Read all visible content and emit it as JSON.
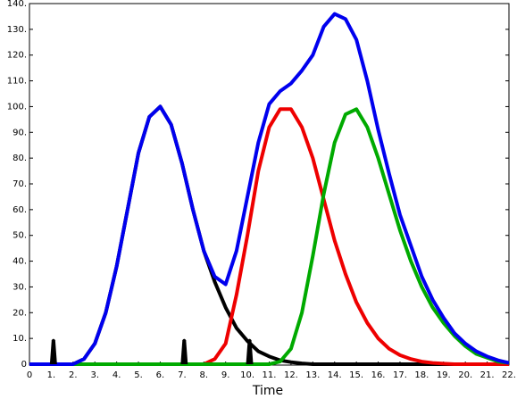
{
  "chart_data": {
    "type": "line",
    "x_label": "Time",
    "x": [
      0,
      0.5,
      1,
      1.5,
      2,
      2.5,
      3,
      3.5,
      4,
      4.5,
      5,
      5.5,
      6,
      6.5,
      7,
      7.5,
      8,
      8.5,
      9,
      9.5,
      10,
      10.5,
      11,
      11.5,
      12,
      12.5,
      13,
      13.5,
      14,
      14.5,
      15,
      15.5,
      16,
      16.5,
      17,
      17.5,
      18,
      18.5,
      19,
      19.5,
      20,
      20.5,
      21,
      21.5,
      22
    ],
    "series": [
      {
        "color": "#000000",
        "values": [
          0,
          0,
          0,
          0,
          0,
          2,
          8,
          20,
          38,
          60,
          82,
          96,
          100,
          93,
          78,
          60,
          44,
          32,
          22,
          14,
          9,
          5,
          3,
          1.5,
          0.8,
          0.3,
          0,
          0,
          0,
          0,
          0,
          0,
          0,
          0,
          0,
          0,
          0,
          0,
          0,
          0,
          0,
          0,
          0,
          0,
          0
        ]
      },
      {
        "color": "#ee0000",
        "values": [
          0,
          0,
          0,
          0,
          0,
          0,
          0,
          0,
          0,
          0,
          0,
          0,
          0,
          0,
          0,
          0,
          0,
          2,
          8,
          27,
          50,
          75,
          92,
          99,
          99,
          92,
          80,
          64,
          48,
          35,
          24,
          16,
          10,
          6,
          3.5,
          2,
          1,
          0.5,
          0.2,
          0,
          0,
          0,
          0,
          0,
          0
        ]
      },
      {
        "color": "#00aa00",
        "values": [
          0,
          0,
          0,
          0,
          0,
          0,
          0,
          0,
          0,
          0,
          0,
          0,
          0,
          0,
          0,
          0,
          0,
          0,
          0,
          0,
          0,
          0,
          0,
          1,
          6,
          20,
          42,
          66,
          86,
          97,
          99,
          92,
          80,
          66,
          52,
          40,
          30,
          22,
          16,
          11,
          7,
          4,
          2.5,
          1,
          0.5
        ]
      },
      {
        "color": "#0000ee",
        "values": [
          0,
          0,
          0,
          0,
          0,
          2,
          8,
          20,
          38,
          60,
          82,
          96,
          100,
          93,
          78,
          60,
          44,
          34,
          31,
          44,
          65,
          86,
          101,
          106,
          109,
          114,
          120,
          131,
          136,
          134,
          126,
          110,
          91,
          74,
          58,
          46,
          34,
          25,
          18,
          12,
          8,
          5,
          3,
          1.5,
          0.5
        ]
      }
    ],
    "impulses": {
      "color": "#000000",
      "x": [
        1.1,
        7.1,
        10.1
      ],
      "values": [
        10,
        10,
        10
      ]
    },
    "xlim": [
      0,
      22
    ],
    "ylim": [
      0,
      140
    ],
    "xticks": [
      0,
      {
        "value": 1,
        "label": "1."
      },
      {
        "value": 2,
        "label": "2."
      },
      {
        "value": 3,
        "label": "3."
      },
      {
        "value": 4,
        "label": "4."
      },
      {
        "value": 5,
        "label": "5."
      },
      {
        "value": 6,
        "label": "6."
      },
      {
        "value": 7,
        "label": "7."
      },
      {
        "value": 8,
        "label": "8."
      },
      {
        "value": 9,
        "label": "9."
      },
      {
        "value": 10,
        "label": "10."
      },
      {
        "value": 11,
        "label": "11."
      },
      {
        "value": 12,
        "label": "12."
      },
      {
        "value": 13,
        "label": "13."
      },
      {
        "value": 14,
        "label": "14."
      },
      {
        "value": 15,
        "label": "15."
      },
      {
        "value": 16,
        "label": "16."
      },
      {
        "value": 17,
        "label": "17."
      },
      {
        "value": 18,
        "label": "18."
      },
      {
        "value": 19,
        "label": "19."
      },
      {
        "value": 20,
        "label": "20."
      },
      {
        "value": 21,
        "label": "21."
      },
      {
        "value": 22,
        "label": "22."
      }
    ],
    "yticks": [
      0,
      {
        "value": 10,
        "label": "10."
      },
      {
        "value": 20,
        "label": "20."
      },
      {
        "value": 30,
        "label": "30."
      },
      {
        "value": 40,
        "label": "40."
      },
      {
        "value": 50,
        "label": "50."
      },
      {
        "value": 60,
        "label": "60."
      },
      {
        "value": 70,
        "label": "70."
      },
      {
        "value": 80,
        "label": "80."
      },
      {
        "value": 90,
        "label": "90."
      },
      {
        "value": 100,
        "label": "100."
      },
      {
        "value": 110,
        "label": "110."
      },
      {
        "value": 120,
        "label": "120."
      },
      {
        "value": 130,
        "label": "130."
      },
      {
        "value": 140,
        "label": "140."
      }
    ],
    "grid": false
  }
}
